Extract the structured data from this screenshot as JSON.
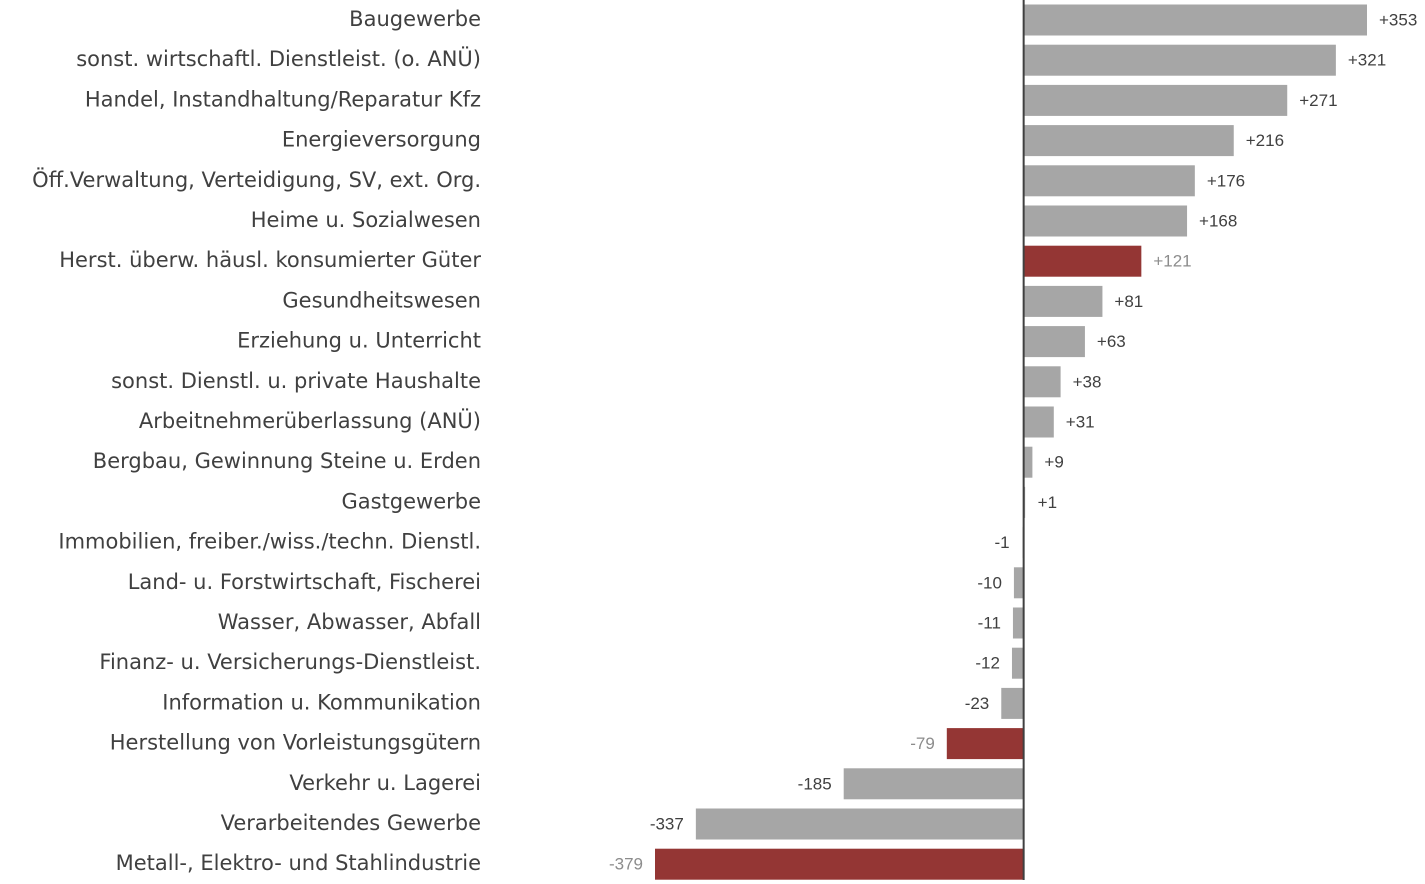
{
  "chart_data": {
    "type": "barh",
    "categories": [
      "Baugewerbe",
      "sonst. wirtschaftl. Dienstleist. (o. ANÜ)",
      "Handel, Instandhaltung/Reparatur Kfz",
      "Energieversorgung",
      "Öff.Verwaltung, Verteidigung, SV, ext. Org.",
      "Heime u. Sozialwesen",
      "Herst. überw. häusl. konsumierter Güter",
      "Gesundheitswesen",
      "Erziehung u. Unterricht",
      "sonst. Dienstl. u. private Haushalte",
      "Arbeitnehmerüberlassung (ANÜ)",
      "Bergbau, Gewinnung Steine u. Erden",
      "Gastgewerbe",
      "Immobilien, freiber./wiss./techn. Dienstl.",
      "Land- u. Forstwirtschaft, Fischerei",
      "Wasser, Abwasser, Abfall",
      "Finanz- u. Versicherungs-Dienstleist.",
      "Information u. Kommunikation",
      "Herstellung von Vorleistungsgütern",
      "Verkehr u. Lagerei",
      "Verarbeitendes Gewerbe",
      "Metall-, Elektro- und Stahlindustrie"
    ],
    "values": [
      353,
      321,
      271,
      216,
      176,
      168,
      121,
      81,
      63,
      38,
      31,
      9,
      1,
      -1,
      -10,
      -11,
      -12,
      -23,
      -79,
      -185,
      -337,
      -379
    ],
    "value_labels": [
      "+353",
      "+321",
      "+271",
      "+216",
      "+176",
      "+168",
      "+121",
      "+81",
      "+63",
      "+38",
      "+31",
      "+9",
      "+1",
      "-1",
      "-10",
      "-11",
      "-12",
      "-23",
      "-79",
      "-185",
      "-337",
      "-379"
    ],
    "color": "#a6a6a6",
    "colors": [
      "#a6a6a6",
      "#a6a6a6",
      "#a6a6a6",
      "#a6a6a6",
      "#a6a6a6",
      "#a6a6a6",
      "#943634",
      "#a6a6a6",
      "#a6a6a6",
      "#a6a6a6",
      "#a6a6a6",
      "#a6a6a6",
      "#a6a6a6",
      "#a6a6a6",
      "#a6a6a6",
      "#a6a6a6",
      "#a6a6a6",
      "#a6a6a6",
      "#943634",
      "#a6a6a6",
      "#a6a6a6",
      "#943634"
    ]
  }
}
